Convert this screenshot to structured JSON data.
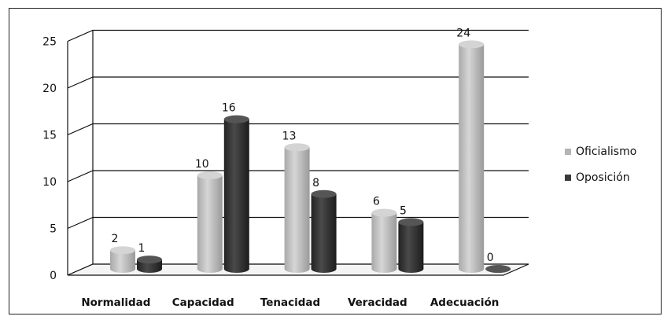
{
  "chart_data": {
    "type": "bar",
    "categories": [
      "Normalidad",
      "Capacidad",
      "Tenacidad",
      "Veracidad",
      "Adecuación"
    ],
    "series": [
      {
        "name": "Oficialismo",
        "values": [
          2,
          10,
          13,
          6,
          24
        ],
        "color": "#c4c4c4"
      },
      {
        "name": "Oposición",
        "values": [
          1,
          16,
          8,
          5,
          0
        ],
        "color": "#3c3c3c"
      }
    ],
    "ylim": [
      0,
      25
    ],
    "yticks": [
      0,
      5,
      10,
      15,
      20,
      25
    ],
    "grid": true,
    "legend_position": "right",
    "data_labels": true,
    "style": "3d-cylinder"
  }
}
